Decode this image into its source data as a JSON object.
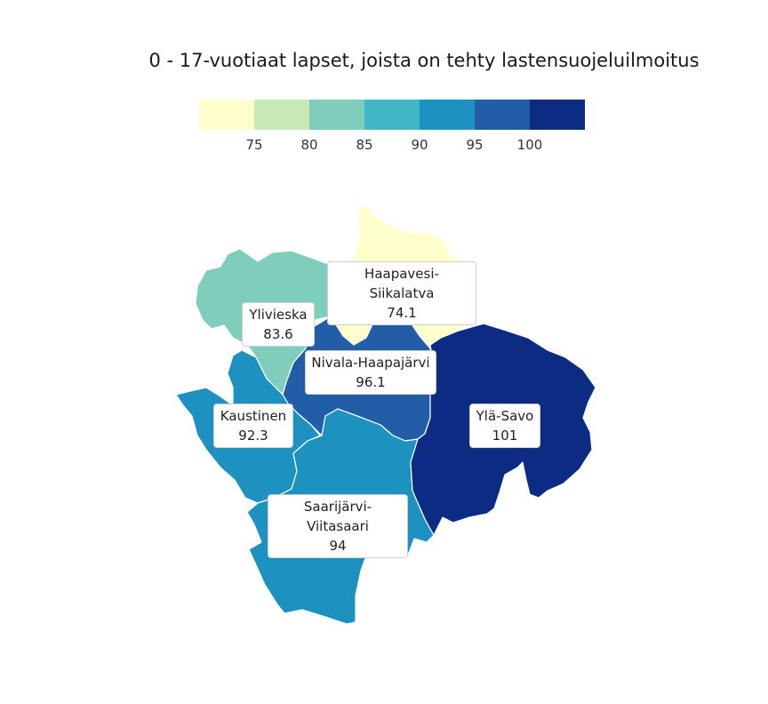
{
  "title": "0 - 17-vuotiaat lapset, joista on tehty lastensuojeluilmoitus",
  "legend": {
    "colors": [
      "#ffffcc",
      "#c7e9b4",
      "#7fcdbb",
      "#41b6c4",
      "#1d91c0",
      "#225ea8",
      "#0c2c84"
    ],
    "ticks": [
      "75",
      "80",
      "85",
      "90",
      "95",
      "100"
    ]
  },
  "regions": [
    {
      "name": "Haapavesi-Siikalatva",
      "value": "74.1",
      "color": "#ffffcc"
    },
    {
      "name": "Ylivieska",
      "value": "83.6",
      "color": "#7fcdbb"
    },
    {
      "name": "Nivala-Haapajärvi",
      "value": "96.1",
      "color": "#225ea8"
    },
    {
      "name": "Kaustinen",
      "value": "92.3",
      "color": "#1d91c0"
    },
    {
      "name": "Ylä-Savo",
      "value": "101",
      "color": "#0c2c84"
    },
    {
      "name": "Saarijärvi-Viitasaari",
      "value": "94",
      "color": "#1d91c0"
    }
  ]
}
